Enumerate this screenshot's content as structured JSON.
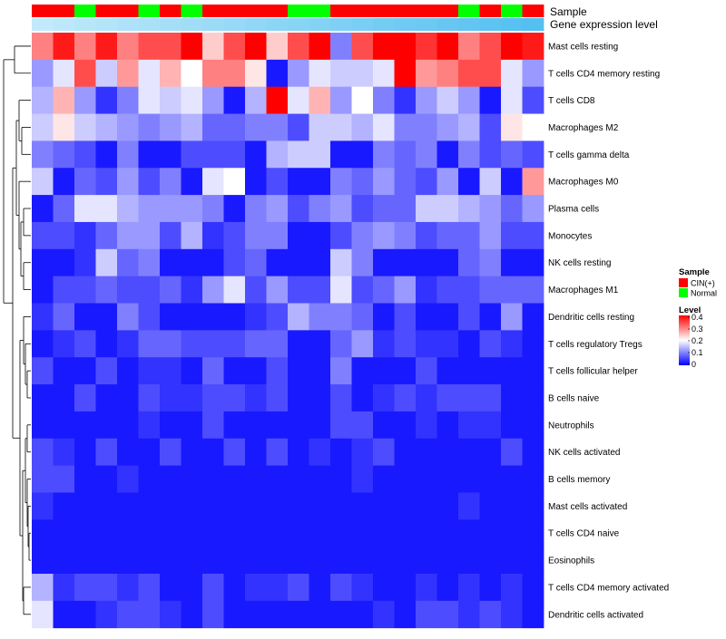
{
  "chart_data": {
    "type": "heatmap",
    "annotation_row_labels": {
      "sample": "Sample",
      "gene_level": "Gene expression level"
    },
    "sample_groups": [
      "CIN",
      "CIN",
      "N",
      "CIN",
      "CIN",
      "N",
      "CIN",
      "N",
      "CIN",
      "CIN",
      "CIN",
      "CIN",
      "N",
      "N",
      "CIN",
      "CIN",
      "CIN",
      "CIN",
      "CIN",
      "CIN",
      "N",
      "CIN",
      "N",
      "CIN"
    ],
    "gene_expression_levels": [
      0.05,
      0.09,
      0.13,
      0.17,
      0.21,
      0.25,
      0.29,
      0.33,
      0.37,
      0.41,
      0.45,
      0.49,
      0.53,
      0.57,
      0.61,
      0.65,
      0.69,
      0.73,
      0.77,
      0.81,
      0.85,
      0.89,
      0.93,
      0.97
    ],
    "rows": [
      "Mast cells resting",
      "T cells CD4 memory resting",
      "T cells CD8",
      "Macrophages M2",
      "T cells gamma delta",
      "Macrophages M0",
      "Plasma cells",
      "Monocytes",
      "NK cells resting",
      "Macrophages M1",
      "Dendritic cells resting",
      "T cells regulatory  Tregs",
      "T cells follicular helper",
      "B cells naive",
      "Neutrophils",
      "NK cells activated",
      "B cells memory",
      "Mast cells activated",
      "T cells CD4 naive",
      "Eosinophils",
      "T cells CD4 memory activated",
      "Dendritic cells activated"
    ],
    "values": [
      [
        0.3,
        0.38,
        0.3,
        0.38,
        0.3,
        0.34,
        0.34,
        0.4,
        0.24,
        0.34,
        0.4,
        0.24,
        0.34,
        0.4,
        0.1,
        0.34,
        0.4,
        0.4,
        0.36,
        0.4,
        0.3,
        0.34,
        0.4,
        0.38
      ],
      [
        0.12,
        0.18,
        0.34,
        0.16,
        0.28,
        0.18,
        0.26,
        0.2,
        0.3,
        0.3,
        0.22,
        0.02,
        0.12,
        0.18,
        0.16,
        0.16,
        0.18,
        0.4,
        0.28,
        0.3,
        0.34,
        0.34,
        0.18,
        0.12
      ],
      [
        0.14,
        0.26,
        0.12,
        0.04,
        0.1,
        0.18,
        0.16,
        0.18,
        0.12,
        0.02,
        0.14,
        0.4,
        0.18,
        0.26,
        0.12,
        0.2,
        0.1,
        0.04,
        0.12,
        0.16,
        0.12,
        0.02,
        0.18,
        0.06
      ],
      [
        0.16,
        0.22,
        0.16,
        0.14,
        0.12,
        0.1,
        0.12,
        0.14,
        0.08,
        0.08,
        0.1,
        0.1,
        0.06,
        0.16,
        0.16,
        0.14,
        0.18,
        0.1,
        0.1,
        0.12,
        0.14,
        0.06,
        0.22,
        0.2
      ],
      [
        0.1,
        0.08,
        0.06,
        0.02,
        0.1,
        0.02,
        0.02,
        0.06,
        0.06,
        0.06,
        0.02,
        0.14,
        0.16,
        0.16,
        0.02,
        0.02,
        0.1,
        0.08,
        0.1,
        0.02,
        0.1,
        0.06,
        0.08,
        0.06
      ],
      [
        0.16,
        0.02,
        0.08,
        0.06,
        0.12,
        0.06,
        0.1,
        0.02,
        0.18,
        0.2,
        0.02,
        0.06,
        0.02,
        0.02,
        0.1,
        0.08,
        0.12,
        0.08,
        0.06,
        0.12,
        0.02,
        0.16,
        0.02,
        0.28
      ],
      [
        0.02,
        0.08,
        0.18,
        0.18,
        0.14,
        0.12,
        0.12,
        0.12,
        0.1,
        0.02,
        0.1,
        0.12,
        0.06,
        0.1,
        0.12,
        0.06,
        0.08,
        0.08,
        0.16,
        0.16,
        0.14,
        0.12,
        0.08,
        0.12
      ],
      [
        0.06,
        0.06,
        0.04,
        0.08,
        0.12,
        0.12,
        0.06,
        0.14,
        0.04,
        0.06,
        0.1,
        0.1,
        0.02,
        0.02,
        0.06,
        0.1,
        0.12,
        0.1,
        0.06,
        0.08,
        0.08,
        0.12,
        0.06,
        0.06
      ],
      [
        0.02,
        0.02,
        0.04,
        0.16,
        0.08,
        0.1,
        0.02,
        0.02,
        0.02,
        0.06,
        0.08,
        0.02,
        0.02,
        0.02,
        0.16,
        0.1,
        0.02,
        0.02,
        0.02,
        0.02,
        0.08,
        0.1,
        0.02,
        0.02
      ],
      [
        0.02,
        0.06,
        0.06,
        0.08,
        0.06,
        0.06,
        0.08,
        0.04,
        0.12,
        0.18,
        0.06,
        0.12,
        0.06,
        0.06,
        0.18,
        0.06,
        0.08,
        0.12,
        0.04,
        0.06,
        0.06,
        0.08,
        0.08,
        0.08
      ],
      [
        0.04,
        0.08,
        0.02,
        0.02,
        0.1,
        0.06,
        0.02,
        0.02,
        0.02,
        0.02,
        0.04,
        0.06,
        0.14,
        0.1,
        0.1,
        0.08,
        0.02,
        0.06,
        0.02,
        0.02,
        0.06,
        0.02,
        0.12,
        0.02
      ],
      [
        0.02,
        0.04,
        0.06,
        0.02,
        0.04,
        0.08,
        0.08,
        0.06,
        0.06,
        0.06,
        0.08,
        0.08,
        0.02,
        0.02,
        0.08,
        0.12,
        0.04,
        0.06,
        0.04,
        0.04,
        0.02,
        0.06,
        0.04,
        0.02
      ],
      [
        0.06,
        0.02,
        0.02,
        0.06,
        0.02,
        0.04,
        0.04,
        0.02,
        0.08,
        0.02,
        0.02,
        0.06,
        0.02,
        0.02,
        0.1,
        0.02,
        0.02,
        0.02,
        0.06,
        0.02,
        0.02,
        0.02,
        0.02,
        0.02
      ],
      [
        0.02,
        0.02,
        0.06,
        0.02,
        0.02,
        0.06,
        0.04,
        0.04,
        0.06,
        0.06,
        0.04,
        0.06,
        0.02,
        0.02,
        0.06,
        0.02,
        0.04,
        0.06,
        0.04,
        0.06,
        0.06,
        0.06,
        0.02,
        0.02
      ],
      [
        0.02,
        0.02,
        0.02,
        0.02,
        0.02,
        0.04,
        0.02,
        0.02,
        0.06,
        0.02,
        0.02,
        0.02,
        0.02,
        0.02,
        0.06,
        0.06,
        0.02,
        0.02,
        0.04,
        0.02,
        0.04,
        0.04,
        0.02,
        0.02
      ],
      [
        0.06,
        0.04,
        0.02,
        0.06,
        0.02,
        0.02,
        0.06,
        0.02,
        0.02,
        0.06,
        0.02,
        0.06,
        0.02,
        0.04,
        0.02,
        0.04,
        0.06,
        0.02,
        0.02,
        0.02,
        0.02,
        0.02,
        0.06,
        0.02
      ],
      [
        0.06,
        0.06,
        0.02,
        0.02,
        0.04,
        0.02,
        0.02,
        0.02,
        0.02,
        0.02,
        0.02,
        0.02,
        0.02,
        0.02,
        0.02,
        0.04,
        0.02,
        0.02,
        0.02,
        0.02,
        0.02,
        0.02,
        0.02,
        0.02
      ],
      [
        0.04,
        0.02,
        0.02,
        0.02,
        0.02,
        0.02,
        0.02,
        0.02,
        0.02,
        0.02,
        0.02,
        0.02,
        0.02,
        0.02,
        0.02,
        0.02,
        0.02,
        0.02,
        0.02,
        0.02,
        0.04,
        0.02,
        0.02,
        0.02
      ],
      [
        0.02,
        0.02,
        0.02,
        0.02,
        0.02,
        0.02,
        0.02,
        0.02,
        0.02,
        0.02,
        0.02,
        0.02,
        0.02,
        0.02,
        0.02,
        0.02,
        0.02,
        0.02,
        0.02,
        0.02,
        0.02,
        0.02,
        0.02,
        0.02
      ],
      [
        0.02,
        0.02,
        0.02,
        0.02,
        0.02,
        0.02,
        0.02,
        0.02,
        0.02,
        0.02,
        0.02,
        0.02,
        0.02,
        0.02,
        0.02,
        0.02,
        0.02,
        0.02,
        0.02,
        0.02,
        0.02,
        0.02,
        0.02,
        0.02
      ],
      [
        0.14,
        0.04,
        0.06,
        0.06,
        0.04,
        0.06,
        0.02,
        0.02,
        0.06,
        0.02,
        0.04,
        0.04,
        0.06,
        0.02,
        0.06,
        0.04,
        0.02,
        0.02,
        0.04,
        0.02,
        0.04,
        0.02,
        0.04,
        0.02
      ],
      [
        0.18,
        0.02,
        0.02,
        0.04,
        0.06,
        0.06,
        0.04,
        0.02,
        0.06,
        0.02,
        0.02,
        0.02,
        0.02,
        0.02,
        0.02,
        0.02,
        0.04,
        0.02,
        0.06,
        0.06,
        0.04,
        0.06,
        0.04,
        0.02
      ]
    ],
    "color_scale": {
      "min": 0,
      "max": 0.4,
      "low": "#0000ff",
      "mid": "#ffffff",
      "high": "#ff0000"
    },
    "legend_sample": {
      "title": "Sample",
      "items": [
        {
          "label": "CIN(+)",
          "color": "#ff0000"
        },
        {
          "label": "Normal",
          "color": "#00ff00"
        }
      ]
    },
    "legend_level": {
      "title": "Level",
      "ticks": [
        "0.4",
        "0.3",
        "0.2",
        "0.1",
        "0"
      ]
    }
  }
}
